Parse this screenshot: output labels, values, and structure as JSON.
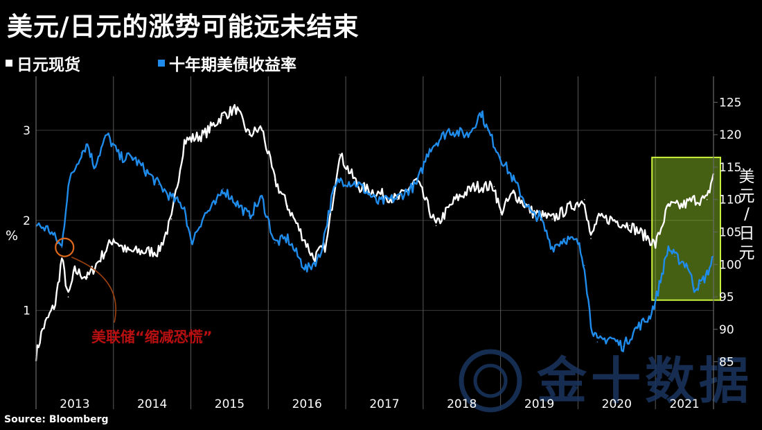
{
  "title": "美元/日元的涨势可能远未结束",
  "legend": [
    {
      "label": "日元现货",
      "color": "#ffffff"
    },
    {
      "label": "十年期美债收益率",
      "color": "#1f8ceb"
    }
  ],
  "source": "Source: Bloomberg",
  "annotation": "美联储“缩减恐慌”",
  "watermark": "金十数据",
  "colors": {
    "background": "#000000",
    "grid": "#3a3a3a",
    "yen": "#ffffff",
    "yield": "#1f8ceb",
    "highlight": "#c8f03c",
    "annotation": "#b81010"
  },
  "chart_data": {
    "type": "line",
    "title": "美元/日元的涨势可能远未结束",
    "grid": true,
    "legend_position": "top-left",
    "x_tick_labels": [
      "2013",
      "2014",
      "2015",
      "2016",
      "2017",
      "2018",
      "2019",
      "2020",
      "2021"
    ],
    "xlim": [
      "2013-01",
      "2021-10"
    ],
    "left_axis": {
      "label": "%",
      "ticks": [
        1,
        2,
        3
      ],
      "range": [
        0.25,
        3.6
      ]
    },
    "right_axis": {
      "label": "美元/日元",
      "ticks": [
        85,
        90,
        95,
        100,
        105,
        110,
        115,
        120,
        125
      ],
      "range": [
        82.5,
        129
      ]
    },
    "series": [
      {
        "name": "十年期美债收益率",
        "axis": "left",
        "color": "#1f8ceb",
        "x": [
          "2013-01",
          "2013-03",
          "2013-05",
          "2013-06",
          "2013-08",
          "2013-09",
          "2013-10",
          "2013-12",
          "2014-02",
          "2014-04",
          "2014-06",
          "2014-08",
          "2014-10",
          "2014-12",
          "2015-01",
          "2015-03",
          "2015-05",
          "2015-06",
          "2015-08",
          "2015-10",
          "2015-12",
          "2016-02",
          "2016-04",
          "2016-06",
          "2016-07",
          "2016-09",
          "2016-11",
          "2016-12",
          "2017-03",
          "2017-06",
          "2017-09",
          "2017-12",
          "2018-02",
          "2018-05",
          "2018-08",
          "2018-10",
          "2018-11",
          "2019-01",
          "2019-03",
          "2019-06",
          "2019-07",
          "2019-09",
          "2019-11",
          "2020-01",
          "2020-02",
          "2020-03",
          "2020-04",
          "2020-06",
          "2020-08",
          "2020-10",
          "2020-12",
          "2021-01",
          "2021-02",
          "2021-03",
          "2021-04",
          "2021-06",
          "2021-07",
          "2021-08",
          "2021-09",
          "2021-10"
        ],
        "y": [
          1.95,
          1.9,
          1.7,
          2.4,
          2.75,
          2.85,
          2.6,
          2.95,
          2.7,
          2.7,
          2.55,
          2.4,
          2.25,
          2.15,
          1.75,
          2.05,
          2.2,
          2.35,
          2.2,
          2.05,
          2.25,
          1.75,
          1.8,
          1.55,
          1.45,
          1.6,
          2.3,
          2.45,
          2.4,
          2.2,
          2.25,
          2.4,
          2.8,
          3.0,
          2.95,
          3.2,
          3.0,
          2.7,
          2.45,
          2.05,
          2.05,
          1.7,
          1.8,
          1.75,
          1.5,
          0.85,
          0.65,
          0.7,
          0.6,
          0.8,
          0.92,
          1.1,
          1.4,
          1.7,
          1.6,
          1.5,
          1.25,
          1.3,
          1.4,
          1.6
        ]
      },
      {
        "name": "日元现货",
        "axis": "right",
        "color": "#ffffff",
        "x": [
          "2013-01",
          "2013-02",
          "2013-04",
          "2013-05",
          "2013-06",
          "2013-07",
          "2013-09",
          "2013-11",
          "2014-01",
          "2014-03",
          "2014-06",
          "2014-08",
          "2014-10",
          "2014-12",
          "2015-03",
          "2015-06",
          "2015-08",
          "2015-10",
          "2015-12",
          "2016-02",
          "2016-04",
          "2016-06",
          "2016-08",
          "2016-10",
          "2016-12",
          "2017-03",
          "2017-06",
          "2017-09",
          "2017-12",
          "2018-03",
          "2018-06",
          "2018-09",
          "2018-12",
          "2019-01",
          "2019-03",
          "2019-06",
          "2019-09",
          "2019-12",
          "2020-02",
          "2020-03",
          "2020-04",
          "2020-06",
          "2020-09",
          "2020-12",
          "2021-01",
          "2021-03",
          "2021-05",
          "2021-07",
          "2021-09",
          "2021-10"
        ],
        "y": [
          86,
          90,
          94,
          101,
          95,
          99,
          98,
          101,
          104,
          102,
          102,
          102,
          107,
          119,
          120,
          123,
          124,
          120,
          121,
          113,
          109,
          105,
          101,
          103,
          117,
          112,
          111,
          110,
          113,
          106,
          110,
          112,
          112,
          108,
          111,
          108,
          107,
          109,
          110,
          104,
          107,
          107,
          106,
          104,
          103,
          109,
          109,
          110,
          110,
          114
        ]
      }
    ],
    "annotations": [
      {
        "text": "美联储“缩减恐慌”",
        "x": "2013-05",
        "axis": "left",
        "y": 1.7,
        "marker": "circle"
      },
      {
        "text": "",
        "x_range": [
          "2021-01",
          "2021-10"
        ],
        "marker": "highlight-box"
      }
    ]
  }
}
